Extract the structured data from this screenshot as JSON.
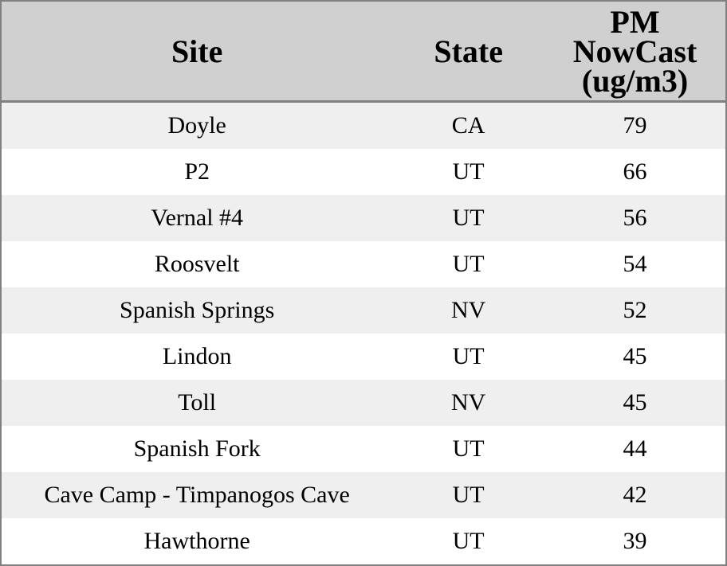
{
  "colors": {
    "header_bg": "#d0d0d0",
    "row_alt_bg": "#efefef",
    "row_bg": "#ffffff",
    "border": "#808080",
    "text": "#000000"
  },
  "table": {
    "columns": [
      {
        "label": "Site"
      },
      {
        "label": "State"
      },
      {
        "label": "PM NowCast (ug/m3)",
        "lines": [
          "PM",
          "NowCast",
          "(ug/m3)"
        ]
      }
    ],
    "rows": [
      {
        "site": "Doyle",
        "state": "CA",
        "pm_nowcast": "79"
      },
      {
        "site": "P2",
        "state": "UT",
        "pm_nowcast": "66"
      },
      {
        "site": "Vernal #4",
        "state": "UT",
        "pm_nowcast": "56"
      },
      {
        "site": "Roosvelt",
        "state": "UT",
        "pm_nowcast": "54"
      },
      {
        "site": "Spanish Springs",
        "state": "NV",
        "pm_nowcast": "52"
      },
      {
        "site": "Lindon",
        "state": "UT",
        "pm_nowcast": "45"
      },
      {
        "site": "Toll",
        "state": "NV",
        "pm_nowcast": "45"
      },
      {
        "site": "Spanish Fork",
        "state": "UT",
        "pm_nowcast": "44"
      },
      {
        "site": "Cave Camp - Timpanogos Cave",
        "state": "UT",
        "pm_nowcast": "42"
      },
      {
        "site": "Hawthorne",
        "state": "UT",
        "pm_nowcast": "39"
      }
    ]
  },
  "chart_data": {
    "type": "table",
    "title": "",
    "columns": [
      "Site",
      "State",
      "PM NowCast (ug/m3)"
    ],
    "rows": [
      [
        "Doyle",
        "CA",
        79
      ],
      [
        "P2",
        "UT",
        66
      ],
      [
        "Vernal #4",
        "UT",
        56
      ],
      [
        "Roosvelt",
        "UT",
        54
      ],
      [
        "Spanish Springs",
        "NV",
        52
      ],
      [
        "Lindon",
        "UT",
        45
      ],
      [
        "Toll",
        "NV",
        45
      ],
      [
        "Spanish Fork",
        "UT",
        44
      ],
      [
        "Cave Camp - Timpanogos Cave",
        "UT",
        42
      ],
      [
        "Hawthorne",
        "UT",
        39
      ]
    ],
    "layout_hints": {
      "striped_rows": true,
      "text_align": "center",
      "header_background": "#d0d0d0",
      "stripe_background": "#efefef",
      "border_color": "#808080"
    }
  }
}
